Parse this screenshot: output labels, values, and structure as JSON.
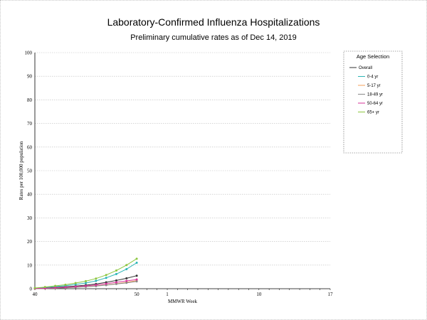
{
  "chart_data": {
    "type": "line",
    "title": "Laboratory-Confirmed Influenza Hospitalizations",
    "subtitle": "Preliminary cumulative rates as of Dec 14, 2019",
    "xlabel": "MMWR Week",
    "ylabel": "Rates per 100,000 population",
    "ylim": [
      0,
      100
    ],
    "yticks": [
      0,
      10,
      20,
      30,
      40,
      50,
      60,
      70,
      80,
      90,
      100
    ],
    "week_sequence": [
      40,
      41,
      42,
      43,
      44,
      45,
      46,
      47,
      48,
      49,
      50,
      51,
      52,
      1,
      2,
      3,
      4,
      5,
      6,
      7,
      8,
      9,
      10,
      11,
      12,
      13,
      14,
      15,
      16,
      17
    ],
    "xticks": [
      40,
      50,
      1,
      10,
      17
    ],
    "x": [
      40,
      41,
      42,
      43,
      44,
      45,
      46,
      47,
      48,
      49,
      50
    ],
    "legend": {
      "title": "Age Selection",
      "position": "right"
    },
    "grid": "horizontal-dotted",
    "series": [
      {
        "name": "Overall",
        "color": "#333333",
        "values": [
          0.1,
          0.3,
          0.5,
          0.8,
          1.1,
          1.5,
          2.0,
          2.7,
          3.5,
          4.4,
          5.5
        ]
      },
      {
        "name": "0-4 yr",
        "color": "#2bb5b5",
        "values": [
          0.2,
          0.5,
          0.9,
          1.3,
          1.8,
          2.4,
          3.3,
          4.6,
          6.2,
          8.3,
          11.0
        ]
      },
      {
        "name": "5-17 yr",
        "color": "#f5a05a",
        "values": [
          0.0,
          0.1,
          0.2,
          0.4,
          0.6,
          0.9,
          1.2,
          1.6,
          2.1,
          2.7,
          3.4
        ]
      },
      {
        "name": "18-49 yr",
        "color": "#888888",
        "values": [
          0.0,
          0.1,
          0.2,
          0.4,
          0.6,
          0.8,
          1.1,
          1.5,
          2.0,
          2.5,
          3.1
        ]
      },
      {
        "name": "50-64 yr",
        "color": "#d6339a",
        "values": [
          0.1,
          0.2,
          0.4,
          0.6,
          0.9,
          1.2,
          1.6,
          2.1,
          2.7,
          3.3,
          3.9
        ]
      },
      {
        "name": "65+ yr",
        "color": "#8cc63f",
        "values": [
          0.3,
          0.7,
          1.2,
          1.7,
          2.4,
          3.2,
          4.3,
          5.8,
          7.7,
          10.0,
          12.7
        ]
      }
    ]
  }
}
